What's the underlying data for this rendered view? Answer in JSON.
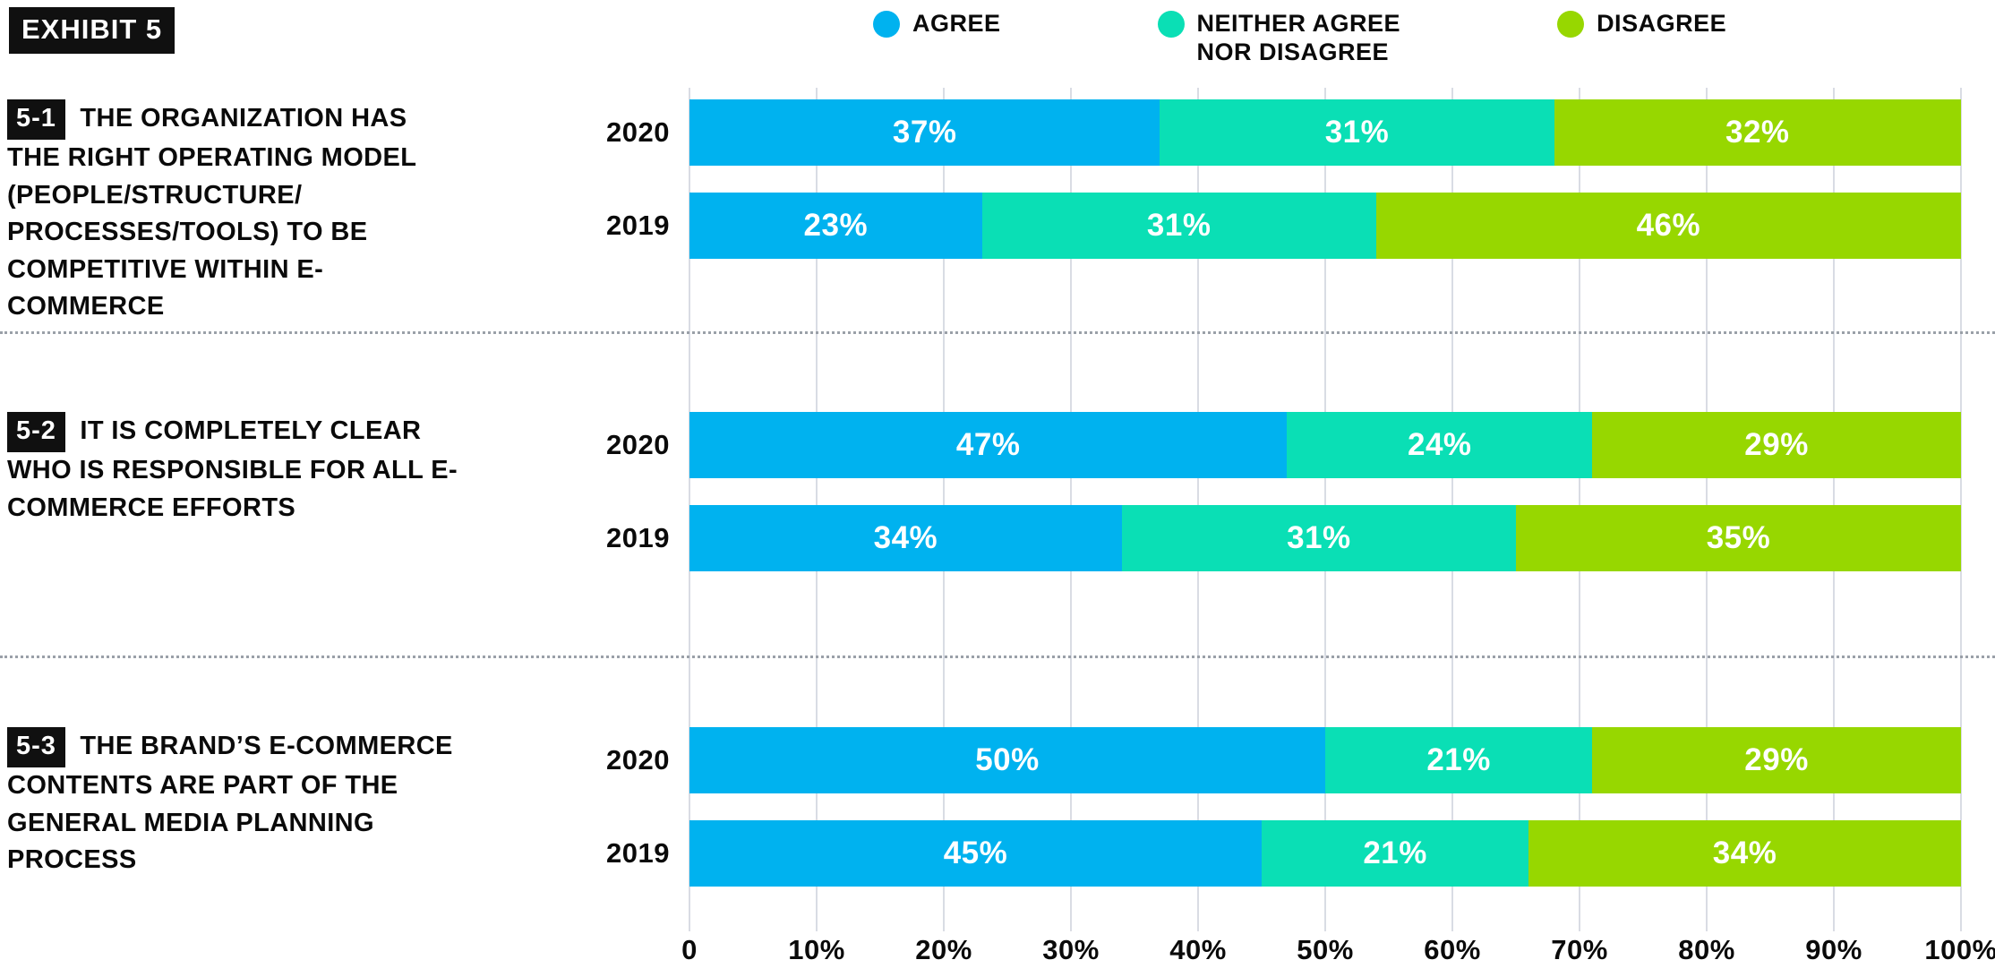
{
  "header": {
    "exhibit_label": "EXHIBIT 5"
  },
  "legend": {
    "items": [
      {
        "label": "AGREE",
        "color": "#00b2ef"
      },
      {
        "label": "NEITHER AGREE\nNOR DISAGREE",
        "color": "#0adfb5"
      },
      {
        "label": "DISAGREE",
        "color": "#97d700"
      }
    ]
  },
  "chart_data": {
    "type": "bar",
    "orientation": "horizontal",
    "stacked": true,
    "series_names": [
      "Agree",
      "Neither agree nor disagree",
      "Disagree"
    ],
    "series_keys": [
      "agree",
      "neither",
      "disagree"
    ],
    "colors": [
      "#00b2ef",
      "#0adfb5",
      "#97d700"
    ],
    "value_suffix": "%",
    "xlim": [
      0,
      100
    ],
    "grid": true,
    "x_ticks": [
      "0",
      "10%",
      "20%",
      "30%",
      "40%",
      "50%",
      "60%",
      "70%",
      "80%",
      "90%",
      "100%"
    ],
    "groups": [
      {
        "badge": "5-1",
        "question": "THE ORGANIZATION HAS THE RIGHT OPERATING MODEL (PEOPLE/STRUCTURE/ PROCESSES/TOOLS) TO BE COMPETITIVE WITHIN E-COMMERCE",
        "rows": [
          {
            "year": "2020",
            "values": [
              37,
              31,
              32
            ]
          },
          {
            "year": "2019",
            "values": [
              23,
              31,
              46
            ]
          }
        ]
      },
      {
        "badge": "5-2",
        "question": "IT IS COMPLETELY CLEAR WHO IS RESPONSIBLE FOR ALL E-COMMERCE EFFORTS",
        "rows": [
          {
            "year": "2020",
            "values": [
              47,
              24,
              29
            ]
          },
          {
            "year": "2019",
            "values": [
              34,
              31,
              35
            ]
          }
        ]
      },
      {
        "badge": "5-3",
        "question": "THE BRAND’S E-COMMERCE CONTENTS ARE PART OF THE GENERAL MEDIA PLANNING PROCESS",
        "rows": [
          {
            "year": "2020",
            "values": [
              50,
              21,
              29
            ]
          },
          {
            "year": "2019",
            "values": [
              45,
              21,
              34
            ]
          }
        ]
      }
    ]
  }
}
